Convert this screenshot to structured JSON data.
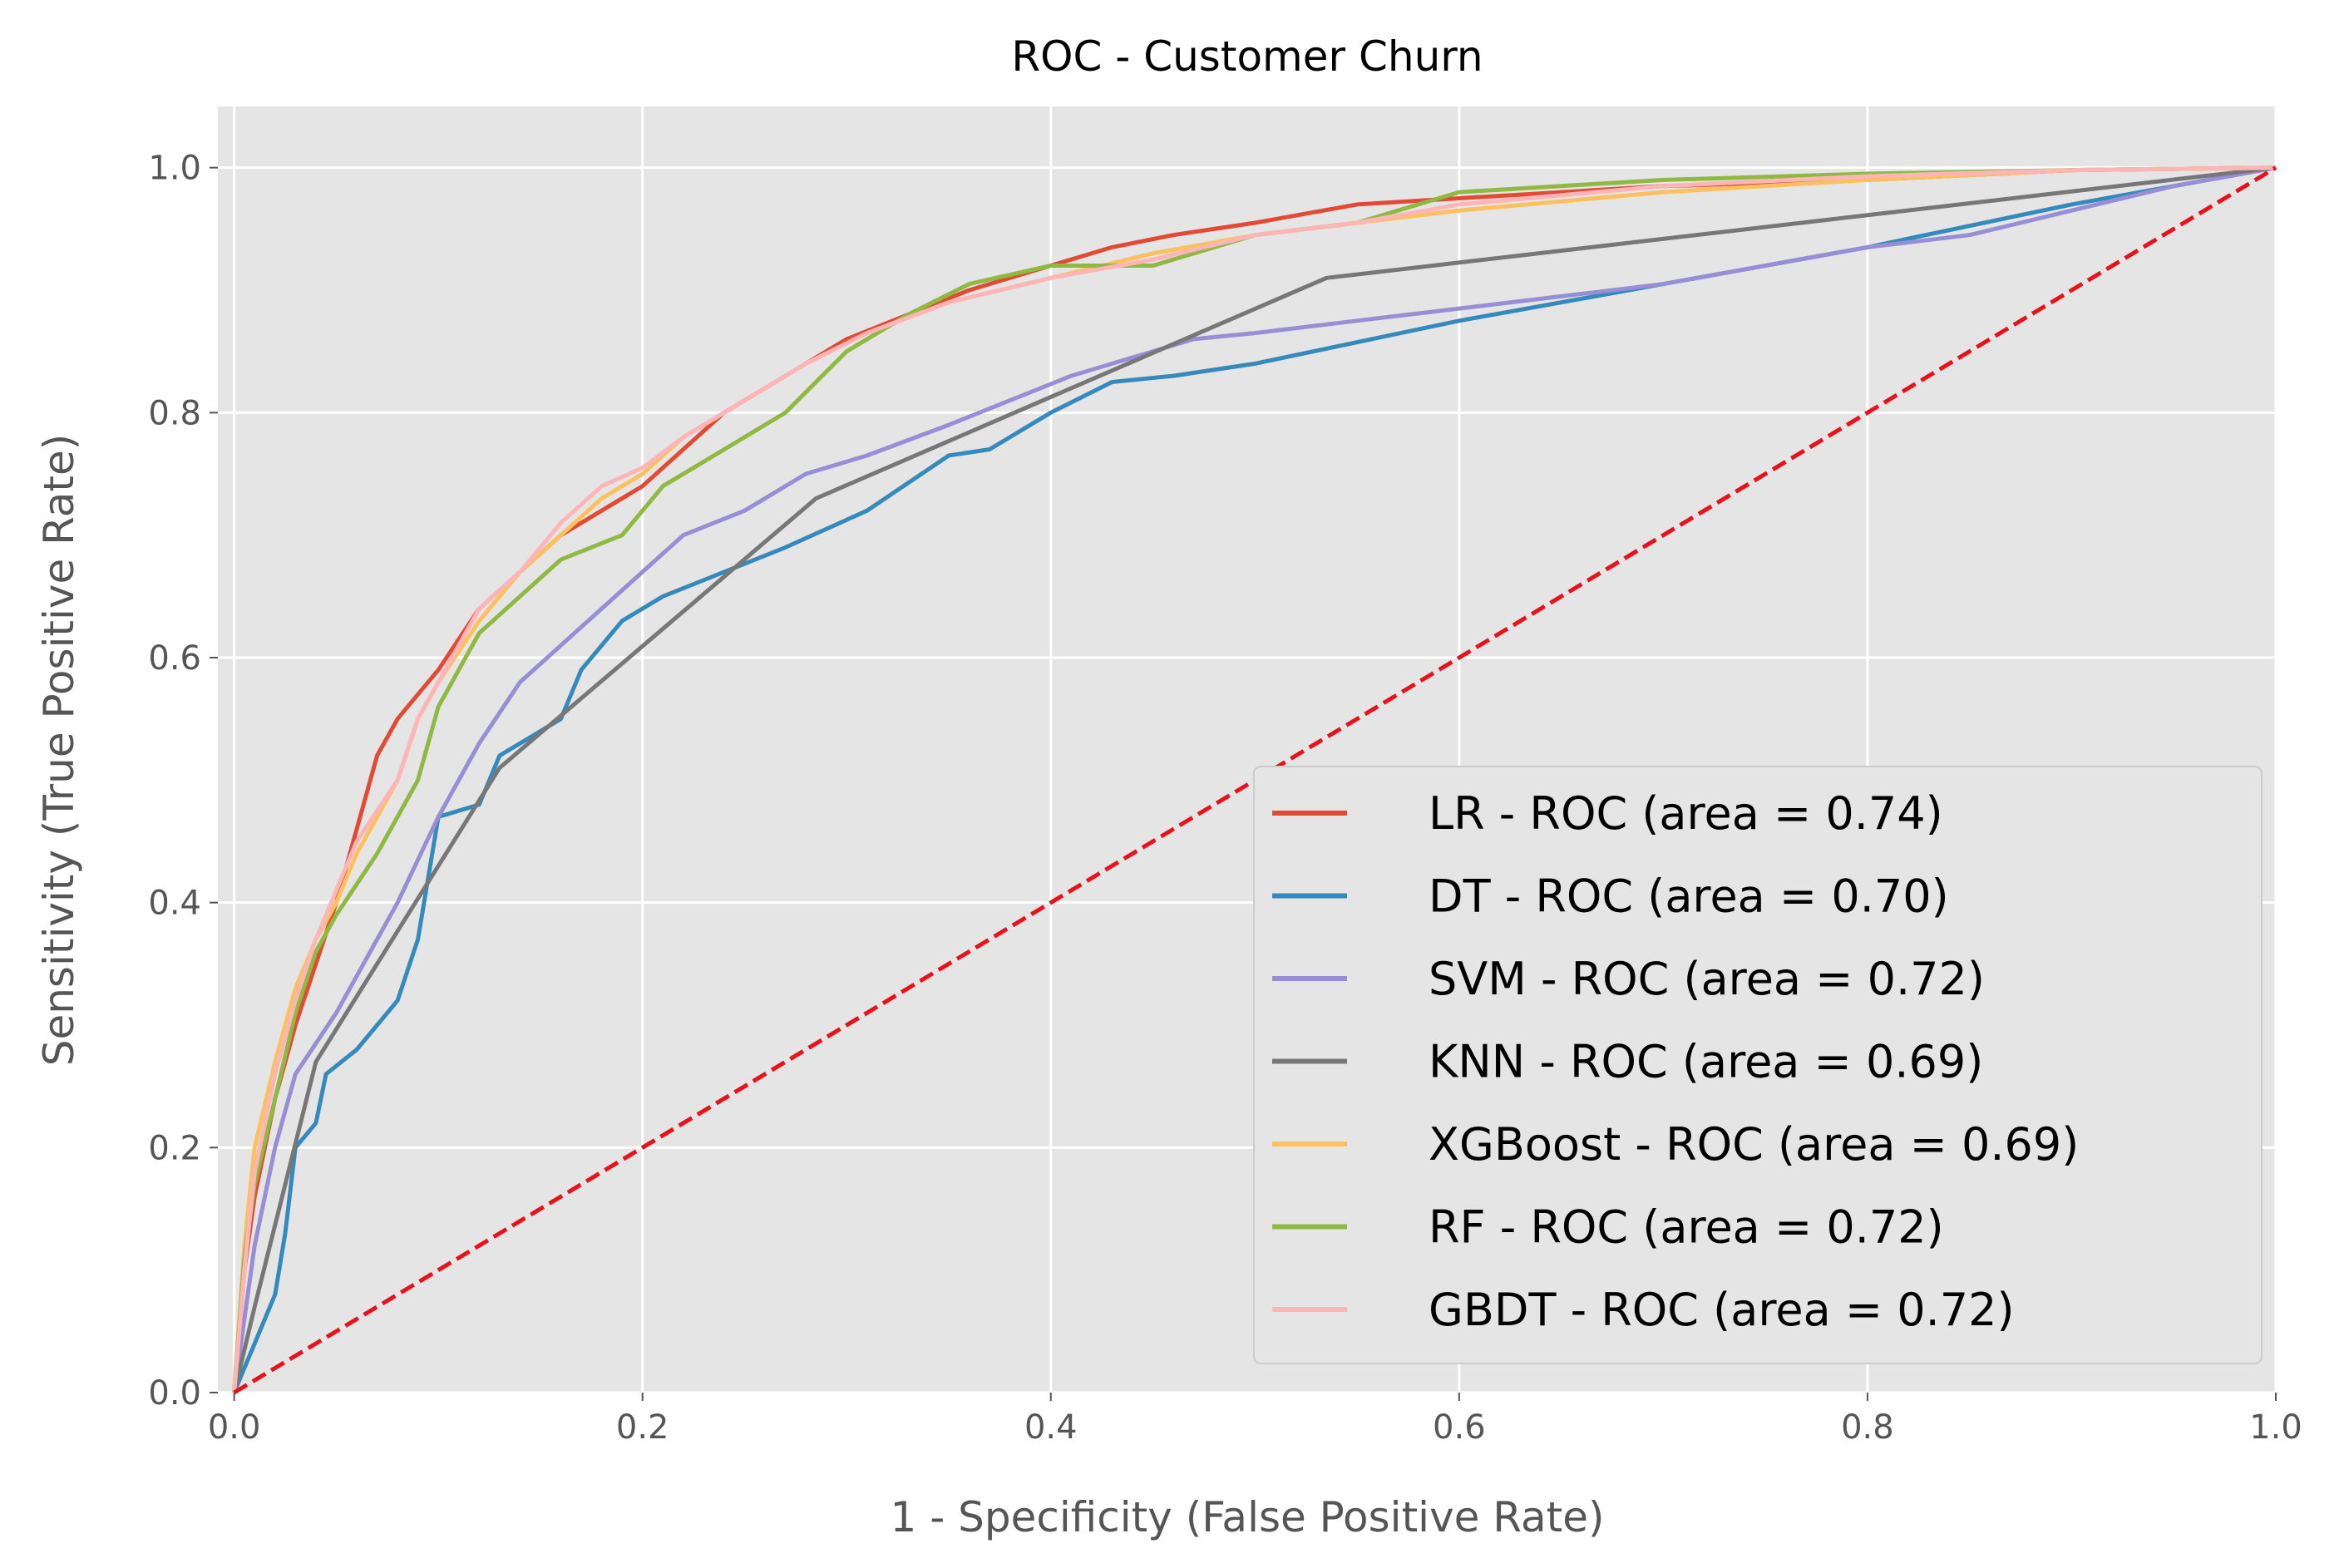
{
  "chart_data": {
    "type": "line",
    "title": "ROC - Customer Churn",
    "xlabel": "1 - Specificity (False Positive Rate)",
    "ylabel": "Sensitivity (True Positive Rate)",
    "xlim": [
      -0.008,
      1.0
    ],
    "ylim": [
      0.0,
      1.05
    ],
    "xticks": [
      0.0,
      0.2,
      0.4,
      0.6,
      0.8,
      1.0
    ],
    "yticks": [
      0.0,
      0.2,
      0.4,
      0.6,
      0.8,
      1.0
    ],
    "xtick_labels": [
      "0.0",
      "0.2",
      "0.4",
      "0.6",
      "0.8",
      "1.0"
    ],
    "ytick_labels": [
      "0.0",
      "0.2",
      "0.4",
      "0.6",
      "0.8",
      "1.0"
    ],
    "grid": true,
    "legend_position": "lower-right",
    "series": [
      {
        "name": "LR - ROC (area = 0.74)",
        "color": "#E24A33",
        "x": [
          0,
          0.005,
          0.01,
          0.015,
          0.02,
          0.03,
          0.04,
          0.05,
          0.06,
          0.07,
          0.08,
          0.09,
          0.1,
          0.12,
          0.14,
          0.16,
          0.18,
          0.2,
          0.22,
          0.24,
          0.26,
          0.28,
          0.3,
          0.33,
          0.36,
          0.4,
          0.43,
          0.46,
          0.5,
          0.55,
          0.6,
          0.7,
          0.8,
          0.9,
          1.0
        ],
        "y": [
          0,
          0.1,
          0.16,
          0.2,
          0.24,
          0.3,
          0.35,
          0.4,
          0.46,
          0.52,
          0.55,
          0.57,
          0.59,
          0.64,
          0.67,
          0.7,
          0.72,
          0.74,
          0.77,
          0.8,
          0.82,
          0.84,
          0.86,
          0.88,
          0.9,
          0.92,
          0.935,
          0.945,
          0.955,
          0.97,
          0.975,
          0.985,
          0.99,
          0.998,
          1.0
        ]
      },
      {
        "name": "DT - ROC (area = 0.70)",
        "color": "#348ABD",
        "x": [
          0,
          0.01,
          0.02,
          0.025,
          0.03,
          0.04,
          0.045,
          0.06,
          0.08,
          0.09,
          0.1,
          0.12,
          0.13,
          0.16,
          0.17,
          0.19,
          0.21,
          0.24,
          0.27,
          0.31,
          0.35,
          0.37,
          0.4,
          0.43,
          0.46,
          0.5,
          0.6,
          0.7,
          0.8,
          0.9,
          1.0
        ],
        "y": [
          0,
          0.04,
          0.08,
          0.13,
          0.2,
          0.22,
          0.26,
          0.28,
          0.32,
          0.37,
          0.47,
          0.48,
          0.52,
          0.55,
          0.59,
          0.63,
          0.65,
          0.67,
          0.69,
          0.72,
          0.765,
          0.77,
          0.8,
          0.825,
          0.83,
          0.84,
          0.875,
          0.905,
          0.935,
          0.97,
          1.0
        ]
      },
      {
        "name": "SVM - ROC (area = 0.72)",
        "color": "#988ED5",
        "x": [
          0,
          0.01,
          0.02,
          0.03,
          0.05,
          0.07,
          0.08,
          0.1,
          0.12,
          0.14,
          0.16,
          0.18,
          0.2,
          0.22,
          0.25,
          0.28,
          0.31,
          0.35,
          0.38,
          0.41,
          0.44,
          0.47,
          0.5,
          0.55,
          0.6,
          0.65,
          0.7,
          0.75,
          0.8,
          0.85,
          0.9,
          0.95,
          1.0
        ],
        "y": [
          0,
          0.12,
          0.2,
          0.26,
          0.31,
          0.37,
          0.4,
          0.47,
          0.53,
          0.58,
          0.61,
          0.64,
          0.67,
          0.7,
          0.72,
          0.75,
          0.765,
          0.79,
          0.81,
          0.83,
          0.845,
          0.86,
          0.865,
          0.875,
          0.885,
          0.895,
          0.905,
          0.92,
          0.935,
          0.945,
          0.965,
          0.985,
          1.0
        ]
      },
      {
        "name": "KNN - ROC (area = 0.69)",
        "color": "#777777",
        "x": [
          0,
          0.01,
          0.04,
          0.13,
          0.285,
          0.535,
          1.0
        ],
        "y": [
          0,
          0.07,
          0.27,
          0.51,
          0.73,
          0.91,
          1.0
        ]
      },
      {
        "name": "XGBoost - ROC (area = 0.69)",
        "color": "#FBC15E",
        "x": [
          0,
          0.005,
          0.01,
          0.02,
          0.03,
          0.04,
          0.05,
          0.06,
          0.08,
          0.09,
          0.1,
          0.12,
          0.14,
          0.16,
          0.18,
          0.2,
          0.22,
          0.25,
          0.28,
          0.31,
          0.35,
          0.4,
          0.45,
          0.5,
          0.55,
          0.6,
          0.7,
          0.8,
          0.9,
          1.0
        ],
        "y": [
          0,
          0.12,
          0.2,
          0.27,
          0.33,
          0.37,
          0.4,
          0.44,
          0.5,
          0.55,
          0.58,
          0.63,
          0.67,
          0.7,
          0.73,
          0.75,
          0.78,
          0.81,
          0.84,
          0.865,
          0.89,
          0.91,
          0.93,
          0.945,
          0.955,
          0.965,
          0.98,
          0.99,
          0.998,
          1.0
        ]
      },
      {
        "name": "RF - ROC (area = 0.72)",
        "color": "#8EBA42",
        "x": [
          0,
          0.005,
          0.01,
          0.02,
          0.03,
          0.04,
          0.05,
          0.07,
          0.08,
          0.09,
          0.1,
          0.12,
          0.14,
          0.16,
          0.19,
          0.21,
          0.23,
          0.25,
          0.27,
          0.3,
          0.33,
          0.36,
          0.4,
          0.45,
          0.5,
          0.55,
          0.6,
          0.7,
          0.8,
          0.9,
          1.0
        ],
        "y": [
          0,
          0.11,
          0.17,
          0.24,
          0.31,
          0.36,
          0.39,
          0.44,
          0.47,
          0.5,
          0.56,
          0.62,
          0.65,
          0.68,
          0.7,
          0.74,
          0.76,
          0.78,
          0.8,
          0.85,
          0.88,
          0.905,
          0.92,
          0.92,
          0.945,
          0.955,
          0.98,
          0.99,
          0.995,
          0.998,
          1.0
        ]
      },
      {
        "name": "GBDT - ROC (area = 0.72)",
        "color": "#FFB5B8",
        "x": [
          0,
          0.005,
          0.01,
          0.02,
          0.03,
          0.04,
          0.05,
          0.06,
          0.08,
          0.09,
          0.1,
          0.12,
          0.14,
          0.16,
          0.18,
          0.2,
          0.22,
          0.25,
          0.28,
          0.31,
          0.35,
          0.4,
          0.45,
          0.5,
          0.55,
          0.6,
          0.7,
          0.8,
          0.9,
          1.0
        ],
        "y": [
          0,
          0.1,
          0.18,
          0.26,
          0.32,
          0.37,
          0.41,
          0.45,
          0.5,
          0.55,
          0.58,
          0.64,
          0.67,
          0.71,
          0.74,
          0.755,
          0.78,
          0.81,
          0.84,
          0.865,
          0.89,
          0.91,
          0.925,
          0.945,
          0.955,
          0.97,
          0.985,
          0.993,
          0.998,
          1.0
        ]
      },
      {
        "name": "",
        "color": "#E8131A",
        "dashed": true,
        "x": [
          0,
          1.0
        ],
        "y": [
          0,
          1.0
        ]
      }
    ]
  }
}
